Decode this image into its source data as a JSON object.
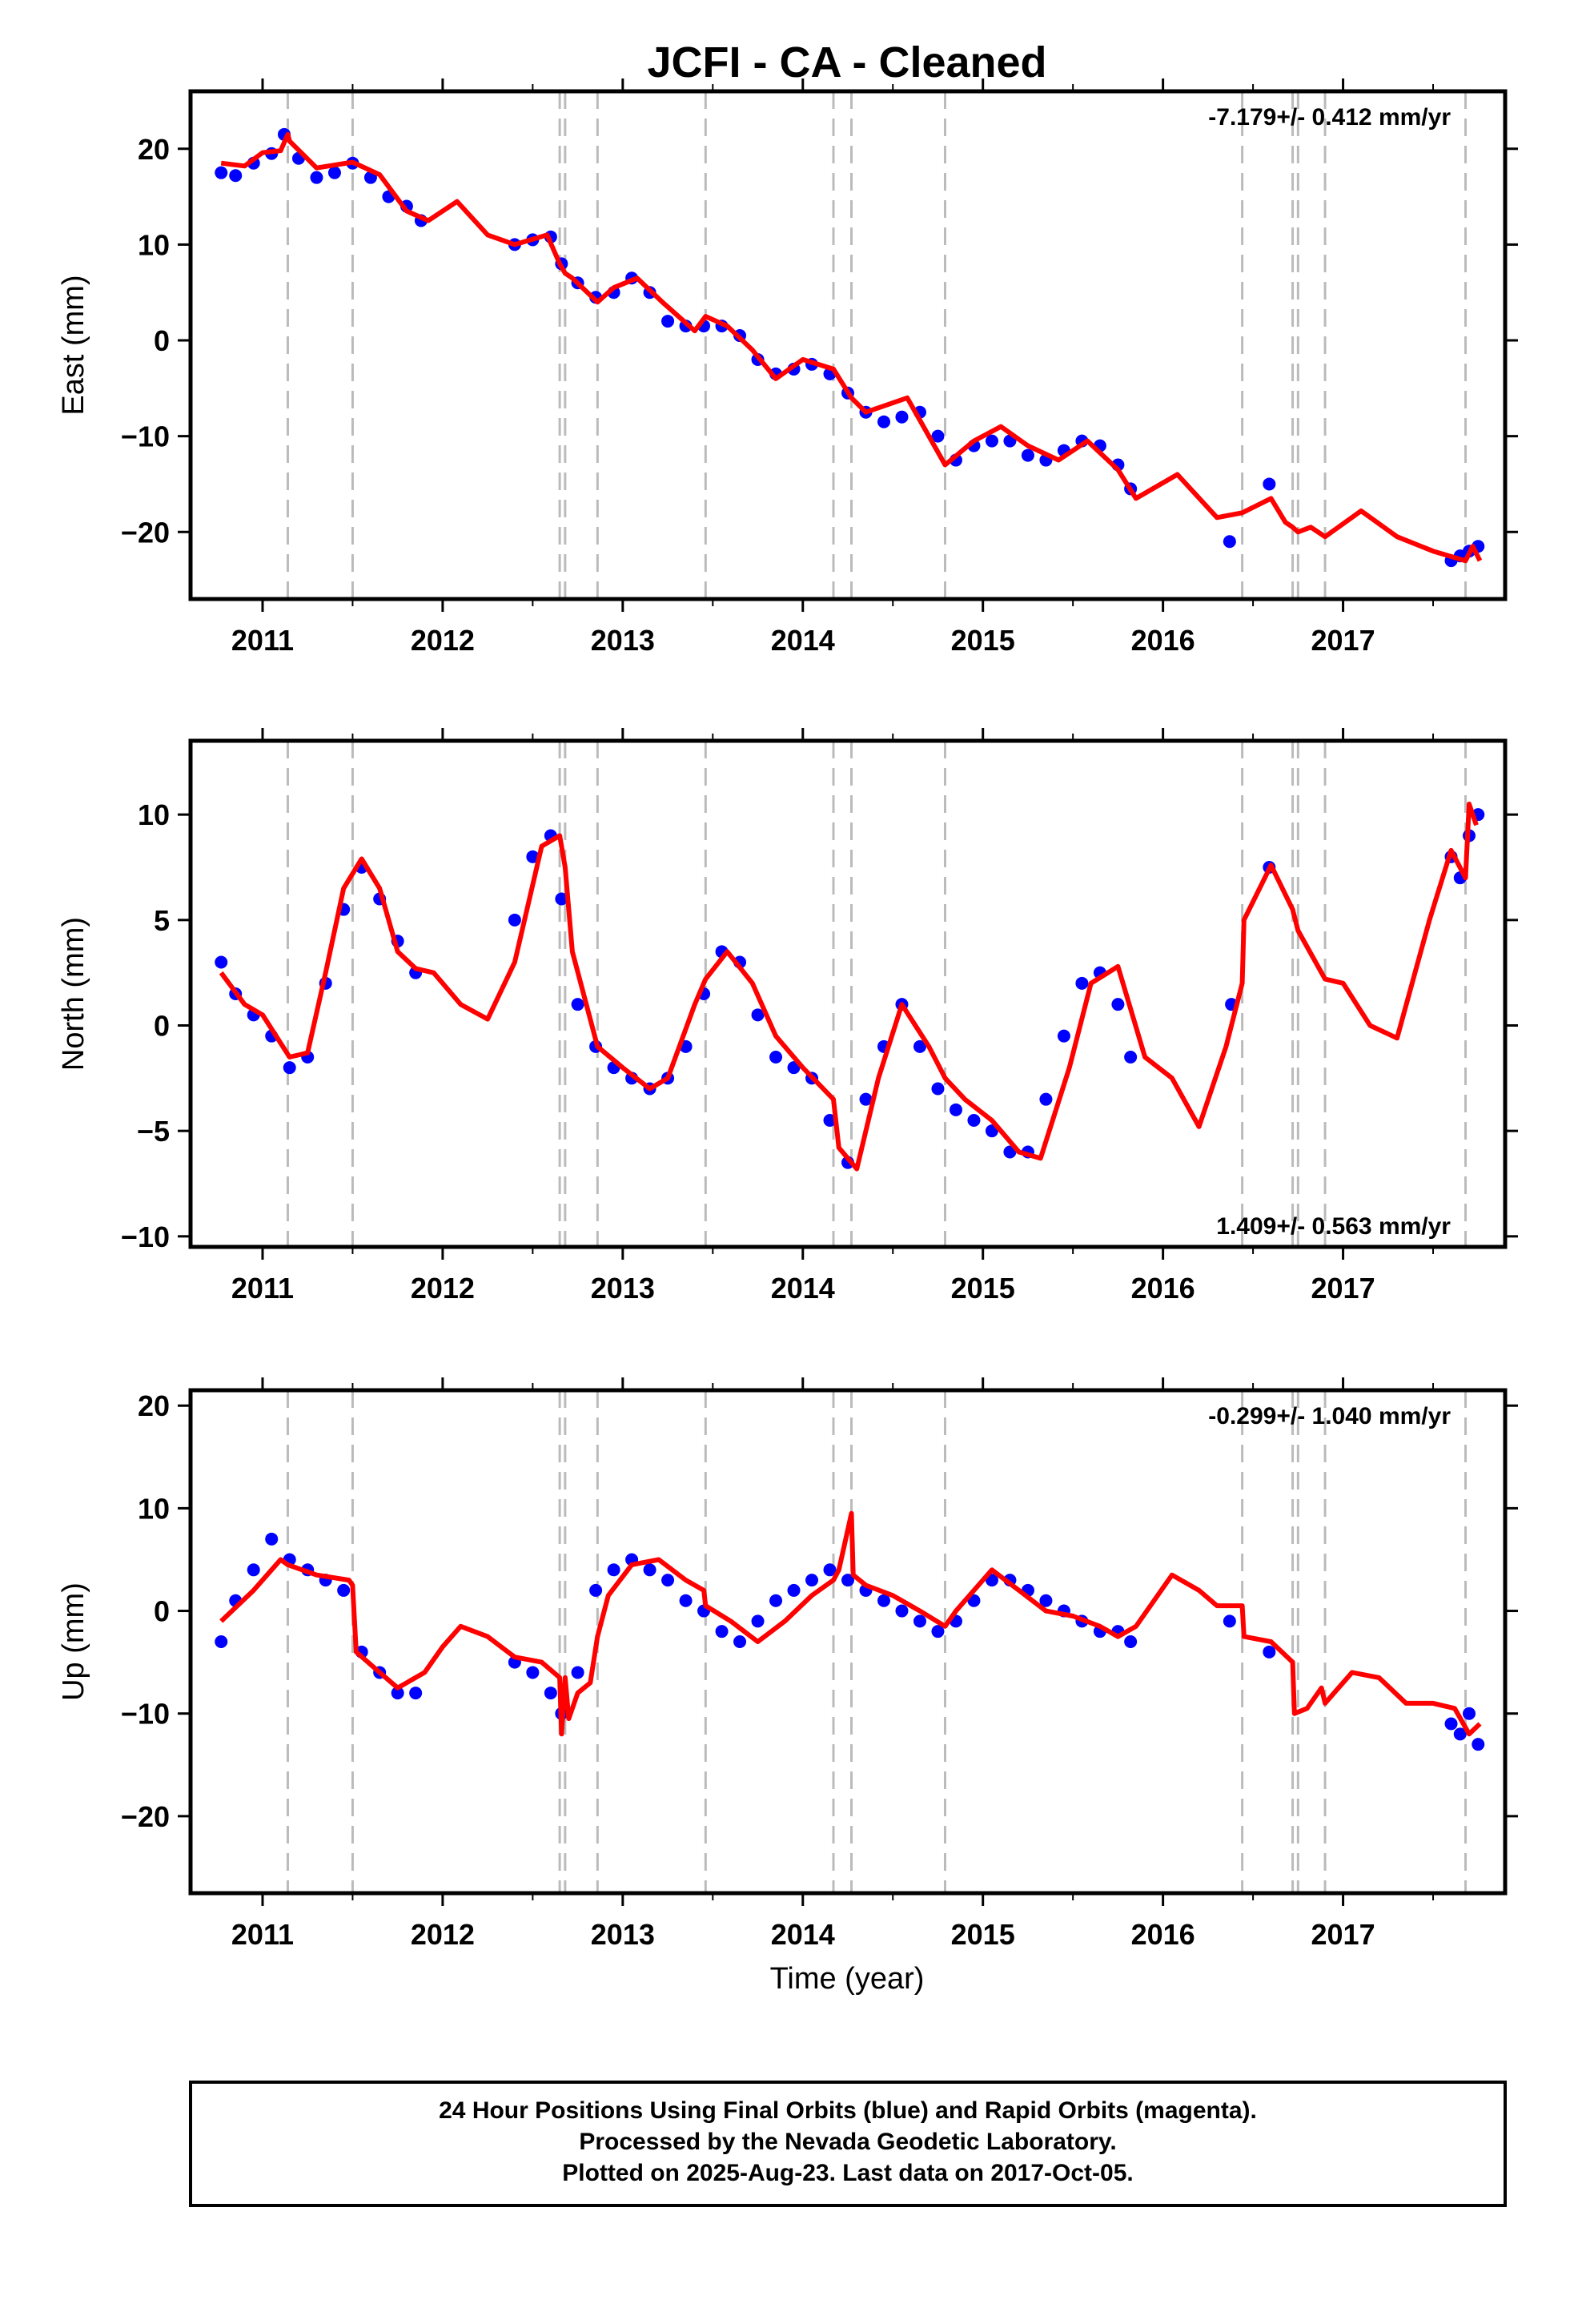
{
  "title": "JCFI  - CA - Cleaned",
  "xlabel": "Time (year)",
  "footer": {
    "line1": "24 Hour Positions Using Final Orbits (blue) and Rapid Orbits (magenta).",
    "line2": "Processed by the Nevada Geodetic Laboratory.",
    "line3": "Plotted on 2025-Aug-23. Last data on 2017-Oct-05."
  },
  "colors": {
    "final_orbits": "#0000ff",
    "model": "#ff0000",
    "event_lines": "#bbbbbb"
  },
  "chart_data": [
    {
      "type": "scatter",
      "component": "east",
      "ylabel": "East (mm)",
      "rate_text": "-7.179+/- 0.412 mm/yr",
      "xlim": [
        2010.6,
        2017.9
      ],
      "ylim": [
        -27,
        26
      ],
      "xticks": [
        2011,
        2012,
        2013,
        2014,
        2015,
        2016,
        2017
      ],
      "yticks": [
        -20,
        -10,
        0,
        10,
        20
      ],
      "event_lines": [
        2011.14,
        2011.5,
        2012.65,
        2012.68,
        2012.86,
        2013.46,
        2014.17,
        2014.27,
        2014.79,
        2016.44,
        2016.72,
        2016.75,
        2016.9,
        2017.68
      ],
      "series": [
        {
          "name": "Final Orbits",
          "x": [
            2010.77,
            2010.85,
            2010.95,
            2011.05,
            2011.12,
            2011.2,
            2011.3,
            2011.4,
            2011.5,
            2011.6,
            2011.7,
            2011.8,
            2011.88,
            2012.4,
            2012.5,
            2012.6,
            2012.66,
            2012.75,
            2012.85,
            2012.95,
            2013.05,
            2013.15,
            2013.25,
            2013.35,
            2013.45,
            2013.55,
            2013.65,
            2013.75,
            2013.85,
            2013.95,
            2014.05,
            2014.15,
            2014.25,
            2014.35,
            2014.45,
            2014.55,
            2014.65,
            2014.75,
            2014.85,
            2014.95,
            2015.05,
            2015.15,
            2015.25,
            2015.35,
            2015.45,
            2015.55,
            2015.65,
            2015.75,
            2015.82,
            2016.37,
            2016.59,
            2017.6,
            2017.65,
            2017.7,
            2017.75
          ],
          "y": [
            17.5,
            17.2,
            18.5,
            19.5,
            21.5,
            19,
            17,
            17.5,
            18.5,
            17,
            15,
            14,
            12.5,
            10,
            10.5,
            10.8,
            8,
            6,
            4.5,
            5,
            6.5,
            5,
            2,
            1.5,
            1.5,
            1.5,
            0.5,
            -2,
            -3.5,
            -3,
            -2.5,
            -3.5,
            -5.5,
            -7.5,
            -8.5,
            -8,
            -7.5,
            -10,
            -12.5,
            -11,
            -10.5,
            -10.5,
            -12,
            -12.5,
            -11.5,
            -10.5,
            -11,
            -13,
            -15.5,
            -21,
            -15,
            -23,
            -22.5,
            -22,
            -21.5
          ]
        },
        {
          "name": "Model",
          "x": [
            2010.77,
            2010.9,
            2011.0,
            2011.1,
            2011.14,
            2011.15,
            2011.3,
            2011.5,
            2011.65,
            2011.8,
            2011.92,
            2012.08,
            2012.25,
            2012.4,
            2012.58,
            2012.65,
            2012.68,
            2012.72,
            2012.86,
            2012.95,
            2013.08,
            2013.22,
            2013.4,
            2013.46,
            2013.58,
            2013.72,
            2013.85,
            2014.0,
            2014.17,
            2014.27,
            2014.35,
            2014.58,
            2014.79,
            2014.95,
            2015.1,
            2015.25,
            2015.42,
            2015.58,
            2015.75,
            2015.85,
            2016.08,
            2016.3,
            2016.44,
            2016.6,
            2016.68,
            2016.72,
            2016.75,
            2016.82,
            2016.9,
            2017.1,
            2017.3,
            2017.5,
            2017.68,
            2017.72,
            2017.76
          ],
          "y": [
            18.5,
            18.2,
            19.6,
            19.8,
            21.5,
            20.8,
            18,
            18.6,
            17.3,
            13.5,
            12.5,
            14.5,
            11,
            10,
            11,
            8,
            7,
            6.5,
            4,
            5.5,
            6.5,
            4,
            1,
            2.5,
            1.5,
            -1,
            -4,
            -2,
            -3,
            -6,
            -7.5,
            -6,
            -13,
            -10.5,
            -9,
            -11,
            -12.5,
            -10.5,
            -13.5,
            -16.5,
            -14,
            -18.5,
            -18,
            -16.5,
            -19,
            -19.5,
            -20,
            -19.5,
            -20.5,
            -17.8,
            -20.5,
            -22,
            -23,
            -21.5,
            -23
          ]
        }
      ]
    },
    {
      "type": "scatter",
      "component": "north",
      "ylabel": "North (mm)",
      "rate_text": "1.409+/- 0.563 mm/yr",
      "xlim": [
        2010.6,
        2017.9
      ],
      "ylim": [
        -10.5,
        13.5
      ],
      "xticks": [
        2011,
        2012,
        2013,
        2014,
        2015,
        2016,
        2017
      ],
      "yticks": [
        -10,
        -5,
        0,
        5,
        10
      ],
      "event_lines": [
        2011.14,
        2011.5,
        2012.65,
        2012.68,
        2012.86,
        2013.46,
        2014.17,
        2014.27,
        2014.79,
        2016.44,
        2016.72,
        2016.75,
        2016.9,
        2017.68
      ],
      "series": [
        {
          "name": "Final Orbits",
          "x": [
            2010.77,
            2010.85,
            2010.95,
            2011.05,
            2011.15,
            2011.25,
            2011.35,
            2011.45,
            2011.55,
            2011.65,
            2011.75,
            2011.85,
            2012.4,
            2012.5,
            2012.6,
            2012.66,
            2012.75,
            2012.85,
            2012.95,
            2013.05,
            2013.15,
            2013.25,
            2013.35,
            2013.45,
            2013.55,
            2013.65,
            2013.75,
            2013.85,
            2013.95,
            2014.05,
            2014.15,
            2014.25,
            2014.35,
            2014.45,
            2014.55,
            2014.65,
            2014.75,
            2014.85,
            2014.95,
            2015.05,
            2015.15,
            2015.25,
            2015.35,
            2015.45,
            2015.55,
            2015.65,
            2015.75,
            2015.82,
            2016.38,
            2016.59,
            2017.6,
            2017.65,
            2017.7,
            2017.75
          ],
          "y": [
            3,
            1.5,
            0.5,
            -0.5,
            -2,
            -1.5,
            2,
            5.5,
            7.5,
            6,
            4,
            2.5,
            5,
            8,
            9,
            6,
            1,
            -1,
            -2,
            -2.5,
            -3,
            -2.5,
            -1,
            1.5,
            3.5,
            3,
            0.5,
            -1.5,
            -2,
            -2.5,
            -4.5,
            -6.5,
            -3.5,
            -1,
            1,
            -1,
            -3,
            -4,
            -4.5,
            -5,
            -6,
            -6,
            -3.5,
            -0.5,
            2,
            2.5,
            1,
            -1.5,
            1,
            7.5,
            8,
            7,
            9,
            10
          ]
        },
        {
          "name": "Model",
          "x": [
            2010.77,
            2010.9,
            2011.0,
            2011.15,
            2011.25,
            2011.35,
            2011.45,
            2011.55,
            2011.65,
            2011.75,
            2011.85,
            2011.95,
            2012.1,
            2012.25,
            2012.4,
            2012.55,
            2012.65,
            2012.68,
            2012.72,
            2012.86,
            2013.0,
            2013.15,
            2013.25,
            2013.4,
            2013.46,
            2013.58,
            2013.72,
            2013.85,
            2014.0,
            2014.17,
            2014.2,
            2014.27,
            2014.3,
            2014.42,
            2014.55,
            2014.7,
            2014.79,
            2014.9,
            2015.05,
            2015.2,
            2015.32,
            2015.48,
            2015.6,
            2015.75,
            2015.9,
            2016.05,
            2016.2,
            2016.35,
            2016.44,
            2016.45,
            2016.6,
            2016.72,
            2016.75,
            2016.9,
            2017.0,
            2017.15,
            2017.3,
            2017.48,
            2017.6,
            2017.68,
            2017.7,
            2017.74
          ],
          "y": [
            2.5,
            1.0,
            0.5,
            -1.5,
            -1.3,
            2.5,
            6.5,
            7.9,
            6.5,
            3.5,
            2.7,
            2.5,
            1.0,
            0.3,
            3,
            8.5,
            9,
            7.5,
            3.5,
            -1,
            -2,
            -3,
            -2.5,
            1,
            2.2,
            3.5,
            2,
            -0.5,
            -2,
            -3.5,
            -5.8,
            -6.5,
            -6.8,
            -2.5,
            1,
            -1,
            -2.5,
            -3.5,
            -4.5,
            -6,
            -6.3,
            -2,
            2,
            2.8,
            -1.5,
            -2.5,
            -4.8,
            -1,
            2,
            5,
            7.6,
            5.5,
            4.5,
            2.2,
            2,
            0,
            -0.6,
            5,
            8.3,
            7,
            10.5,
            9.5
          ]
        }
      ]
    },
    {
      "type": "scatter",
      "component": "up",
      "ylabel": "Up (mm)",
      "rate_text": "-0.299+/- 1.040 mm/yr",
      "xlim": [
        2010.6,
        2017.9
      ],
      "ylim": [
        -27.5,
        21.5
      ],
      "xticks": [
        2011,
        2012,
        2013,
        2014,
        2015,
        2016,
        2017
      ],
      "yticks": [
        -20,
        -10,
        0,
        10,
        20
      ],
      "event_lines": [
        2011.14,
        2011.5,
        2012.65,
        2012.68,
        2012.86,
        2013.46,
        2014.17,
        2014.27,
        2014.79,
        2016.44,
        2016.72,
        2016.75,
        2016.9,
        2017.68
      ],
      "series": [
        {
          "name": "Final Orbits",
          "x": [
            2010.77,
            2010.85,
            2010.95,
            2011.05,
            2011.15,
            2011.25,
            2011.35,
            2011.45,
            2011.55,
            2011.65,
            2011.75,
            2011.85,
            2012.4,
            2012.5,
            2012.6,
            2012.66,
            2012.75,
            2012.85,
            2012.95,
            2013.05,
            2013.15,
            2013.25,
            2013.35,
            2013.45,
            2013.55,
            2013.65,
            2013.75,
            2013.85,
            2013.95,
            2014.05,
            2014.15,
            2014.25,
            2014.35,
            2014.45,
            2014.55,
            2014.65,
            2014.75,
            2014.85,
            2014.95,
            2015.05,
            2015.15,
            2015.25,
            2015.35,
            2015.45,
            2015.55,
            2015.65,
            2015.75,
            2015.82,
            2016.37,
            2016.59,
            2017.6,
            2017.65,
            2017.7,
            2017.75
          ],
          "y": [
            -3,
            1,
            4,
            7,
            5,
            4,
            3,
            2,
            -4,
            -6,
            -8,
            -8,
            -5,
            -6,
            -8,
            -10,
            -6,
            2,
            4,
            5,
            4,
            3,
            1,
            0,
            -2,
            -3,
            -1,
            1,
            2,
            3,
            4,
            3,
            2,
            1,
            0,
            -1,
            -2,
            -1,
            1,
            3,
            3,
            2,
            1,
            0,
            -1,
            -2,
            -2,
            -3,
            -1,
            -4,
            -11,
            -12,
            -10,
            -13
          ]
        },
        {
          "name": "Model",
          "x": [
            2010.77,
            2010.95,
            2011.1,
            2011.14,
            2011.3,
            2011.48,
            2011.5,
            2011.52,
            2011.65,
            2011.75,
            2011.9,
            2012.0,
            2012.1,
            2012.25,
            2012.4,
            2012.55,
            2012.65,
            2012.66,
            2012.68,
            2012.7,
            2012.75,
            2012.82,
            2012.86,
            2012.92,
            2013.05,
            2013.2,
            2013.35,
            2013.45,
            2013.46,
            2013.6,
            2013.75,
            2013.9,
            2014.05,
            2014.17,
            2014.2,
            2014.27,
            2014.28,
            2014.35,
            2014.5,
            2014.65,
            2014.79,
            2014.85,
            2015.05,
            2015.2,
            2015.35,
            2015.5,
            2015.65,
            2015.75,
            2015.85,
            2016.05,
            2016.2,
            2016.3,
            2016.44,
            2016.45,
            2016.6,
            2016.72,
            2016.73,
            2016.8,
            2016.88,
            2016.9,
            2017.05,
            2017.2,
            2017.35,
            2017.5,
            2017.62,
            2017.7,
            2017.76
          ],
          "y": [
            -1,
            2,
            5,
            4.5,
            3.5,
            3,
            2.5,
            -4,
            -6,
            -7.5,
            -6,
            -3.5,
            -1.5,
            -2.5,
            -4.5,
            -5,
            -6.5,
            -12,
            -6.5,
            -10.5,
            -8,
            -7,
            -2.5,
            1.5,
            4.5,
            5,
            3,
            2,
            0.5,
            -1,
            -3,
            -1,
            1.5,
            3,
            4,
            9.5,
            3.5,
            2.5,
            1.5,
            0,
            -1.5,
            0,
            4,
            2,
            0,
            -0.5,
            -1.5,
            -2.5,
            -1.5,
            3.5,
            2,
            0.5,
            0.5,
            -2.5,
            -3,
            -5,
            -10,
            -9.5,
            -7.5,
            -9,
            -6,
            -6.5,
            -9,
            -9,
            -9.5,
            -12,
            -11
          ]
        }
      ]
    }
  ]
}
